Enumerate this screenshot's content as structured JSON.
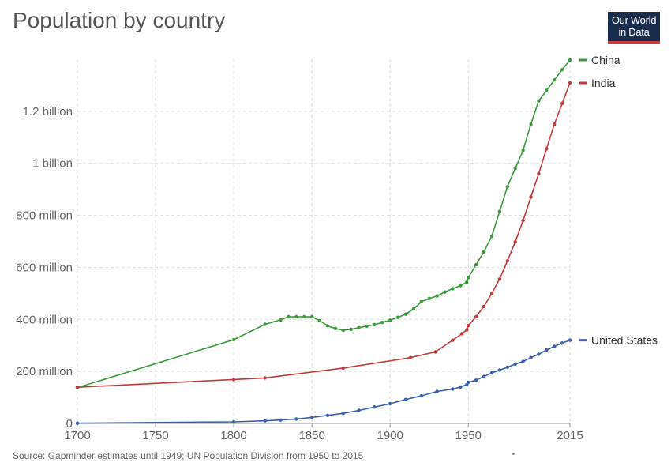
{
  "header": {
    "title": "Population by country",
    "logo_line1": "Our World",
    "logo_line2": "in Data"
  },
  "footer": {
    "source": "Source: Gapminder estimates until 1949; UN Population Division from 1950 to 2015"
  },
  "chart_data": {
    "type": "line",
    "title": "Population by country",
    "xlabel": "",
    "ylabel": "",
    "xlim": [
      1700,
      2015
    ],
    "ylim": [
      0,
      1400000000
    ],
    "grid": true,
    "legend_placement": "right",
    "x_ticks": [
      {
        "value": 1700,
        "label": "1700"
      },
      {
        "value": 1750,
        "label": "1750"
      },
      {
        "value": 1800,
        "label": "1800"
      },
      {
        "value": 1850,
        "label": "1850"
      },
      {
        "value": 1900,
        "label": "1900"
      },
      {
        "value": 1950,
        "label": "1950"
      },
      {
        "value": 2015,
        "label": "2015"
      }
    ],
    "y_ticks": [
      {
        "value": 0,
        "label": "0"
      },
      {
        "value": 200000000,
        "label": "200 million"
      },
      {
        "value": 400000000,
        "label": "400 million"
      },
      {
        "value": 600000000,
        "label": "600 million"
      },
      {
        "value": 800000000,
        "label": "800 million"
      },
      {
        "value": 1000000000,
        "label": "1 billion"
      },
      {
        "value": 1200000000,
        "label": "1.2 billion"
      }
    ],
    "series": [
      {
        "name": "China",
        "color": "#3a9a3c",
        "x": [
          1700,
          1800,
          1820,
          1830,
          1835,
          1840,
          1845,
          1850,
          1855,
          1860,
          1865,
          1870,
          1875,
          1880,
          1885,
          1890,
          1895,
          1900,
          1905,
          1910,
          1915,
          1920,
          1925,
          1930,
          1935,
          1940,
          1945,
          1949,
          1950,
          1955,
          1960,
          1965,
          1970,
          1975,
          1980,
          1985,
          1990,
          1995,
          2000,
          2005,
          2010,
          2015
        ],
        "y": [
          138000000,
          322000000,
          381000000,
          398000000,
          410000000,
          410000000,
          410000000,
          410000000,
          395000000,
          375000000,
          365000000,
          358000000,
          362000000,
          368000000,
          374000000,
          380000000,
          388000000,
          397000000,
          408000000,
          420000000,
          440000000,
          468000000,
          480000000,
          490000000,
          505000000,
          518000000,
          530000000,
          543000000,
          560000000,
          610000000,
          660000000,
          720000000,
          815000000,
          910000000,
          980000000,
          1050000000,
          1150000000,
          1240000000,
          1280000000,
          1320000000,
          1360000000,
          1397000000
        ]
      },
      {
        "name": "India",
        "color": "#c23b3b",
        "x": [
          1700,
          1800,
          1820,
          1870,
          1913,
          1929,
          1940,
          1946,
          1949,
          1950,
          1955,
          1960,
          1965,
          1970,
          1975,
          1980,
          1985,
          1990,
          1995,
          2000,
          2005,
          2010,
          2015
        ],
        "y": [
          139000000,
          169000000,
          175000000,
          213000000,
          253000000,
          275000000,
          320000000,
          345000000,
          360000000,
          376000000,
          410000000,
          450000000,
          500000000,
          555000000,
          625000000,
          698000000,
          780000000,
          870000000,
          960000000,
          1056000000,
          1150000000,
          1230000000,
          1309000000
        ]
      },
      {
        "name": "United States",
        "color": "#3a5fab",
        "x": [
          1700,
          1800,
          1820,
          1830,
          1840,
          1850,
          1860,
          1870,
          1880,
          1890,
          1900,
          1910,
          1920,
          1930,
          1940,
          1945,
          1949,
          1950,
          1955,
          1960,
          1965,
          1970,
          1975,
          1980,
          1985,
          1990,
          1995,
          2000,
          2005,
          2010,
          2015
        ],
        "y": [
          1000000,
          6000000,
          10000000,
          13000000,
          17000000,
          23000000,
          31000000,
          39000000,
          50000000,
          63000000,
          76000000,
          92000000,
          106000000,
          123000000,
          132000000,
          140000000,
          149000000,
          158000000,
          166000000,
          180000000,
          194000000,
          205000000,
          216000000,
          228000000,
          238000000,
          253000000,
          266000000,
          282000000,
          296000000,
          309000000,
          320000000
        ]
      }
    ]
  }
}
